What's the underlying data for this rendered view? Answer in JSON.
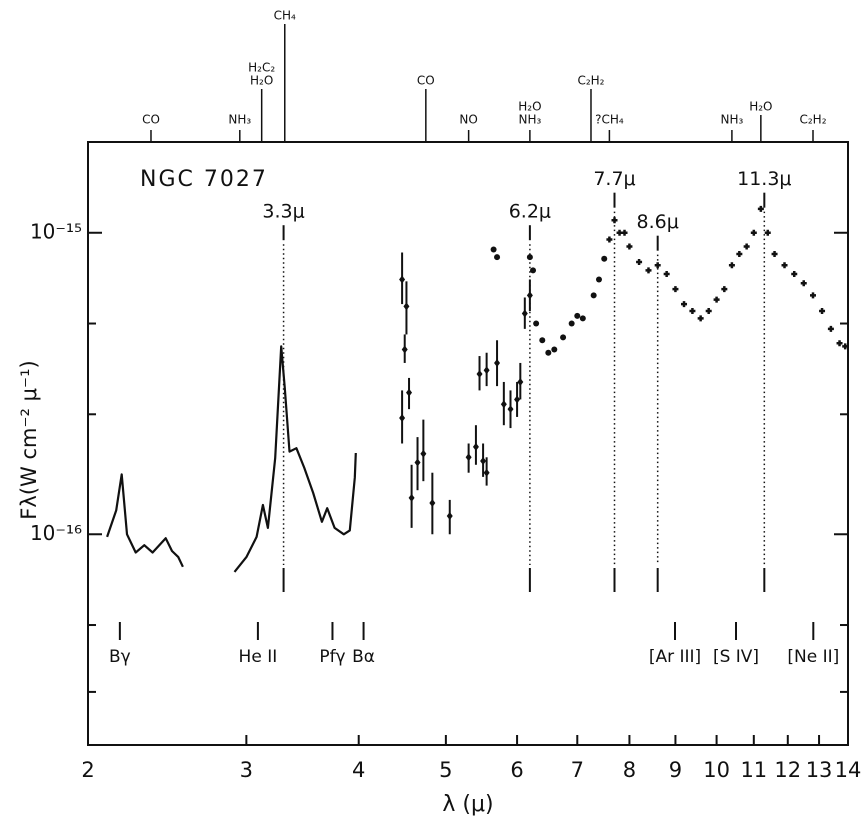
{
  "chart_data": {
    "type": "spectrum",
    "title": "NGC 7027",
    "x_label": "λ (μ)",
    "y_label": "Fλ(W cm⁻² μ⁻¹)",
    "x_log": true,
    "y_log": true,
    "color": "#111111",
    "xlim": [
      2,
      14
    ],
    "ylim": [
      2e-17,
      2e-15
    ],
    "xticks": [
      2,
      3,
      4,
      5,
      6,
      7,
      8,
      9,
      10,
      11,
      12,
      13,
      14
    ],
    "yticks": [
      {
        "value": 1e-15,
        "label": "10⁻¹⁵"
      },
      {
        "value": 1e-16,
        "label": "10⁻¹⁶"
      }
    ],
    "yminor": [
      5e-16,
      2.5e-16,
      5e-17,
      3e-17
    ],
    "series": [
      {
        "style": "line",
        "x": [
          2.1,
          2.15,
          2.18,
          2.21,
          2.26,
          2.31,
          2.36,
          2.44,
          2.48,
          2.52,
          2.55
        ],
        "values": [
          9.8e-17,
          1.2e-16,
          1.58e-16,
          1e-16,
          8.7e-17,
          9.2e-17,
          8.7e-17,
          9.7e-17,
          8.8e-17,
          8.4e-17,
          7.8e-17
        ]
      },
      {
        "style": "line",
        "x": [
          2.91,
          3.0,
          3.08,
          3.13,
          3.17,
          3.23,
          3.28,
          3.31,
          3.35,
          3.41,
          3.48,
          3.56,
          3.64,
          3.69,
          3.76,
          3.85,
          3.91,
          3.96,
          3.97
        ],
        "values": [
          7.5e-17,
          8.4e-17,
          9.8e-17,
          1.25e-16,
          1.05e-16,
          1.79e-16,
          4.2e-16,
          3.05e-16,
          1.88e-16,
          1.93e-16,
          1.66e-16,
          1.37e-16,
          1.1e-16,
          1.22e-16,
          1.05e-16,
          1e-16,
          1.03e-16,
          1.54e-16,
          1.86e-16
        ]
      },
      {
        "style": "errorbar",
        "x": [
          4.47,
          4.5,
          4.52,
          4.47,
          4.55,
          4.58,
          4.65,
          4.72,
          4.83,
          5.05,
          5.3,
          5.4,
          5.5,
          5.55,
          5.45,
          5.55,
          5.7,
          5.8,
          5.9,
          6.0,
          6.05,
          6.12,
          6.2
        ],
        "values": [
          7e-16,
          4.1e-16,
          5.7e-16,
          2.43e-16,
          2.95e-16,
          1.32e-16,
          1.73e-16,
          1.85e-16,
          1.27e-16,
          1.15e-16,
          1.8e-16,
          1.95e-16,
          1.75e-16,
          1.6e-16,
          3.4e-16,
          3.5e-16,
          3.7e-16,
          2.7e-16,
          2.6e-16,
          2.8e-16,
          3.2e-16,
          5.4e-16,
          6.2e-16
        ],
        "lower": [
          5.8e-16,
          3.7e-16,
          4.6e-16,
          2e-16,
          2.6e-16,
          1.05e-16,
          1.4e-16,
          1.5e-16,
          1e-16,
          1e-16,
          1.6e-16,
          1.7e-16,
          1.55e-16,
          1.45e-16,
          3e-16,
          3.1e-16,
          3.1e-16,
          2.3e-16,
          2.25e-16,
          2.45e-16,
          2.8e-16,
          4.8e-16,
          5.5e-16
        ],
        "upper": [
          8.6e-16,
          4.6e-16,
          6.9e-16,
          3e-16,
          3.3e-16,
          1.7e-16,
          2.1e-16,
          2.4e-16,
          1.6e-16,
          1.3e-16,
          2e-16,
          2.3e-16,
          2e-16,
          1.8e-16,
          3.9e-16,
          4e-16,
          4.4e-16,
          3.2e-16,
          3e-16,
          3.2e-16,
          3.7e-16,
          6.1e-16,
          7e-16
        ]
      },
      {
        "style": "dots",
        "x": [
          5.65,
          5.7,
          6.2,
          6.25,
          6.3,
          6.4,
          6.5,
          6.6,
          6.75,
          6.9,
          7.0,
          7.1,
          7.3,
          7.4,
          7.5
        ],
        "values": [
          8.8e-16,
          8.3e-16,
          8.3e-16,
          7.5e-16,
          5e-16,
          4.4e-16,
          4e-16,
          4.1e-16,
          4.5e-16,
          5e-16,
          5.3e-16,
          5.2e-16,
          6.2e-16,
          7e-16,
          8.2e-16
        ]
      },
      {
        "style": "cross",
        "x": [
          7.6,
          7.7,
          7.8,
          7.9,
          8.0,
          8.2,
          8.4,
          8.6,
          8.8,
          9.0,
          9.2,
          9.4,
          9.6,
          9.8,
          10.0,
          10.2,
          10.4,
          10.6,
          10.8,
          11.0,
          11.2,
          11.4,
          11.6,
          11.9,
          12.2,
          12.5,
          12.8,
          13.1,
          13.4,
          13.7,
          13.9
        ],
        "values": [
          9.5e-16,
          1.1e-15,
          1e-15,
          1e-15,
          9e-16,
          8e-16,
          7.5e-16,
          7.8e-16,
          7.3e-16,
          6.5e-16,
          5.8e-16,
          5.5e-16,
          5.2e-16,
          5.5e-16,
          6e-16,
          6.5e-16,
          7.8e-16,
          8.5e-16,
          9e-16,
          1e-15,
          1.2e-15,
          1e-15,
          8.5e-16,
          7.8e-16,
          7.3e-16,
          6.8e-16,
          6.2e-16,
          5.5e-16,
          4.8e-16,
          4.3e-16,
          4.2e-16
        ]
      }
    ],
    "features": [
      {
        "text": "3.3μ",
        "x": 3.3,
        "y": 1.17e-15
      },
      {
        "text": "6.2μ",
        "x": 6.2,
        "y": 1.17e-15
      },
      {
        "text": "7.7μ",
        "x": 7.7,
        "y": 1.5e-15
      },
      {
        "text": "8.6μ",
        "x": 8.6,
        "y": 1.08e-15
      },
      {
        "text": "11.3μ",
        "x": 11.3,
        "y": 1.5e-15
      }
    ],
    "lines": [
      {
        "text": "Bγ",
        "x": 2.17
      },
      {
        "text": "He II",
        "x": 3.09
      },
      {
        "text": "Pfγ",
        "x": 3.74
      },
      {
        "text": "Bα",
        "x": 4.05
      },
      {
        "text": "[Ar III]",
        "x": 8.99
      },
      {
        "text": "[S IV]",
        "x": 10.51
      },
      {
        "text": "[Ne II]",
        "x": 12.81
      }
    ],
    "bands": [
      {
        "x": 2.35,
        "labels": [
          "CO"
        ]
      },
      {
        "x": 2.95,
        "labels": [
          "NH₃"
        ]
      },
      {
        "x": 3.12,
        "labels": [
          "H₂O",
          "H₂C₂"
        ]
      },
      {
        "x": 3.31,
        "labels": [
          "CH₄"
        ]
      },
      {
        "x": 4.75,
        "labels": [
          "CO"
        ]
      },
      {
        "x": 5.3,
        "labels": [
          "NO"
        ]
      },
      {
        "x": 6.2,
        "labels": [
          "NH₃",
          "H₂O"
        ]
      },
      {
        "x": 7.25,
        "labels": [
          "C₂H₂"
        ]
      },
      {
        "x": 7.6,
        "labels": [
          "?CH₄"
        ]
      },
      {
        "x": 10.4,
        "labels": [
          "NH₃"
        ]
      },
      {
        "x": 11.2,
        "labels": [
          "H₂O"
        ]
      },
      {
        "x": 12.8,
        "labels": [
          "C₂H₂"
        ]
      }
    ]
  }
}
